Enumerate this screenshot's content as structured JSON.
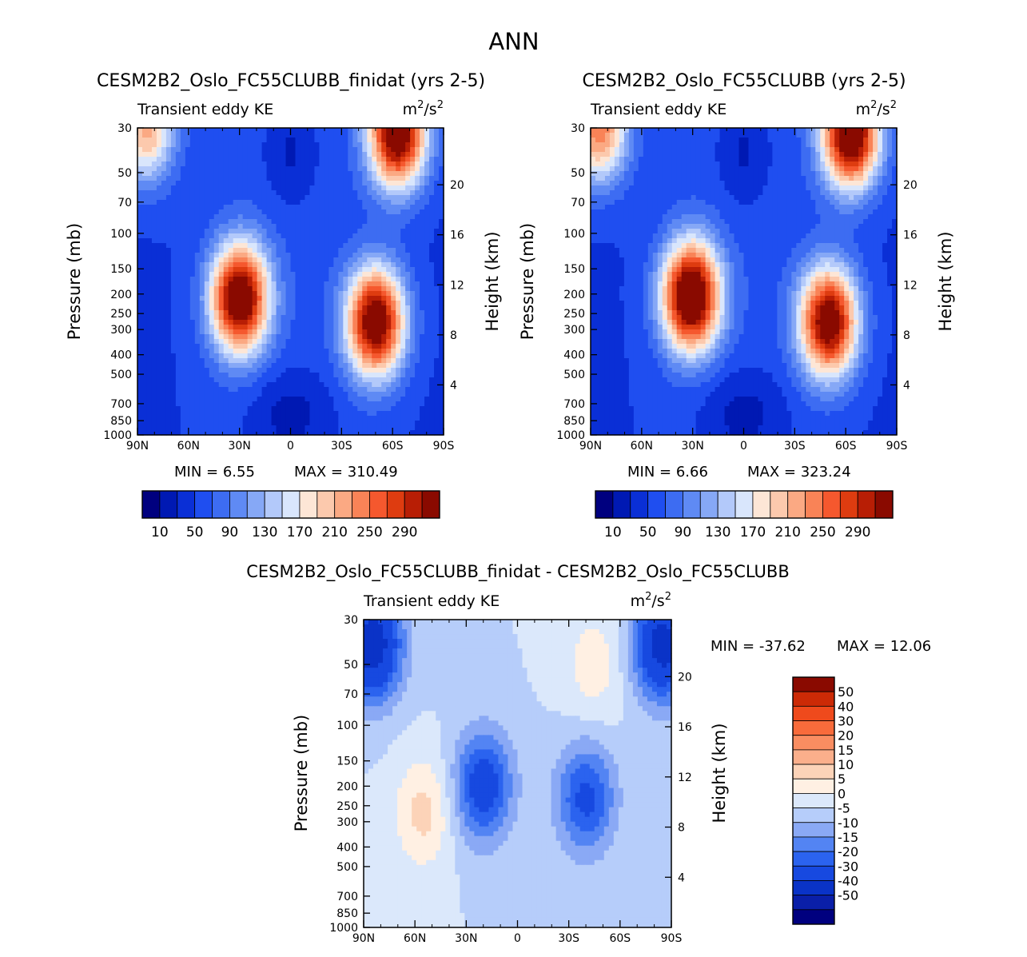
{
  "page": {
    "title": "ANN"
  },
  "palettes": {
    "abs": [
      "#00007f",
      "#0019b3",
      "#0a2fd6",
      "#1f4ef0",
      "#3d6cf2",
      "#5f8af4",
      "#86a8f6",
      "#b3c9fa",
      "#d9e6fc",
      "#fde6d6",
      "#fcc9ad",
      "#fba983",
      "#f98357",
      "#f5582e",
      "#de3c10",
      "#b81e05",
      "#8a0a00"
    ],
    "diff": [
      "#00007f",
      "#0a1fa8",
      "#0a33c7",
      "#1749e0",
      "#2b63ef",
      "#5384f3",
      "#8aa9f5",
      "#b6cdfa",
      "#dbe8fb",
      "#fff0e3",
      "#fcd3b8",
      "#fbaf8b",
      "#f98d61",
      "#f86b3b",
      "#ef4a1c",
      "#cc2a06",
      "#8a0a00"
    ]
  },
  "chart_data": [
    {
      "type": "contour",
      "id": "panel1",
      "title": "CESM2B2_Oslo_FC55CLUBB_finidat (yrs 2-5)",
      "left_label": "Transient eddy KE",
      "units_base": "m",
      "units_exp": "2",
      "units_mid": "/s",
      "units_exp2": "2",
      "ylabel": "Pressure (mb)",
      "y2label": "Height (km)",
      "x_ticks": [
        "90N",
        "60N",
        "30N",
        "0",
        "30S",
        "60S",
        "90S"
      ],
      "x_values": [
        90,
        60,
        30,
        0,
        -30,
        -60,
        -90
      ],
      "y_ticks": [
        30,
        50,
        70,
        100,
        150,
        200,
        250,
        300,
        400,
        500,
        700,
        850,
        1000
      ],
      "y_tick_labels": [
        "30",
        "50",
        "70",
        "100",
        "150",
        "200",
        "250",
        "300",
        "400",
        "500",
        "700",
        "850",
        "1000"
      ],
      "height_ticks": [
        4,
        8,
        12,
        16,
        20
      ],
      "height_tick_labels": [
        "4",
        "8",
        "12",
        "16",
        "20"
      ],
      "min_text": "MIN =    6.55",
      "max_text": "MAX = 310.49",
      "levels": [
        10,
        30,
        50,
        70,
        90,
        110,
        130,
        150,
        170,
        190,
        210,
        230,
        250,
        270,
        290,
        310
      ],
      "colorbar_labels": [
        "10",
        "50",
        "90",
        "130",
        "170",
        "210",
        "250",
        "290"
      ],
      "features": [
        {
          "lat": 30,
          "p": 210,
          "amp": 305
        },
        {
          "lat": -50,
          "p": 275,
          "amp": 300
        },
        {
          "lat": -63,
          "p": 32,
          "amp": 305
        },
        {
          "lat": 85,
          "p": 30,
          "amp": 170
        }
      ]
    },
    {
      "type": "contour",
      "id": "panel2",
      "title": "CESM2B2_Oslo_FC55CLUBB (yrs 2-5)",
      "left_label": "Transient eddy KE",
      "units_base": "m",
      "units_exp": "2",
      "units_mid": "/s",
      "units_exp2": "2",
      "ylabel": "Pressure (mb)",
      "y2label": "Height (km)",
      "x_ticks": [
        "90N",
        "60N",
        "30N",
        "0",
        "30S",
        "60S",
        "90S"
      ],
      "x_values": [
        90,
        60,
        30,
        0,
        -30,
        -60,
        -90
      ],
      "y_ticks": [
        30,
        50,
        70,
        100,
        150,
        200,
        250,
        300,
        400,
        500,
        700,
        850,
        1000
      ],
      "y_tick_labels": [
        "30",
        "50",
        "70",
        "100",
        "150",
        "200",
        "250",
        "300",
        "400",
        "500",
        "700",
        "850",
        "1000"
      ],
      "height_ticks": [
        4,
        8,
        12,
        16,
        20
      ],
      "height_tick_labels": [
        "4",
        "8",
        "12",
        "16",
        "20"
      ],
      "min_text": "MIN =    6.66",
      "max_text": "MAX = 323.24",
      "levels": [
        10,
        30,
        50,
        70,
        90,
        110,
        130,
        150,
        170,
        190,
        210,
        230,
        250,
        270,
        290,
        310
      ],
      "colorbar_labels": [
        "10",
        "50",
        "90",
        "130",
        "170",
        "210",
        "250",
        "290"
      ],
      "features": [
        {
          "lat": 31,
          "p": 205,
          "amp": 320
        },
        {
          "lat": -50,
          "p": 275,
          "amp": 295
        },
        {
          "lat": -63,
          "p": 32,
          "amp": 315
        },
        {
          "lat": 85,
          "p": 30,
          "amp": 200
        }
      ]
    },
    {
      "type": "contour",
      "id": "panel3",
      "title": "CESM2B2_Oslo_FC55CLUBB_finidat - CESM2B2_Oslo_FC55CLUBB",
      "left_label": "Transient eddy KE",
      "units_base": "m",
      "units_exp": "2",
      "units_mid": "/s",
      "units_exp2": "2",
      "ylabel": "Pressure (mb)",
      "y2label": "Height (km)",
      "x_ticks": [
        "90N",
        "60N",
        "30N",
        "0",
        "30S",
        "60S",
        "90S"
      ],
      "x_values": [
        90,
        60,
        30,
        0,
        -30,
        -60,
        -90
      ],
      "y_ticks": [
        30,
        50,
        70,
        100,
        150,
        200,
        250,
        300,
        400,
        500,
        700,
        850,
        1000
      ],
      "y_tick_labels": [
        "30",
        "50",
        "70",
        "100",
        "150",
        "200",
        "250",
        "300",
        "400",
        "500",
        "700",
        "850",
        "1000"
      ],
      "height_ticks": [
        4,
        8,
        12,
        16,
        20
      ],
      "height_tick_labels": [
        "4",
        "8",
        "12",
        "16",
        "20"
      ],
      "min_text": "MIN = -37.62",
      "max_text": "MAX =   12.06",
      "levels": [
        -50,
        -40,
        -30,
        -20,
        -15,
        -10,
        -5,
        0,
        5,
        10,
        15,
        20,
        30,
        40,
        50
      ],
      "colorbar_labels": [
        "50",
        "40",
        "30",
        "20",
        "15",
        "10",
        "5",
        "0",
        "-5",
        "-10",
        "-15",
        "-20",
        "-30",
        "-40",
        "-50"
      ],
      "features": [
        {
          "lat": 55,
          "p": 270,
          "amp": 12
        },
        {
          "lat": -45,
          "p": 50,
          "amp": 8
        },
        {
          "lat": 20,
          "p": 200,
          "amp": -25
        },
        {
          "lat": -40,
          "p": 230,
          "amp": -22
        },
        {
          "lat": 85,
          "p": 40,
          "amp": -37
        },
        {
          "lat": -85,
          "p": 40,
          "amp": -35
        }
      ]
    }
  ]
}
